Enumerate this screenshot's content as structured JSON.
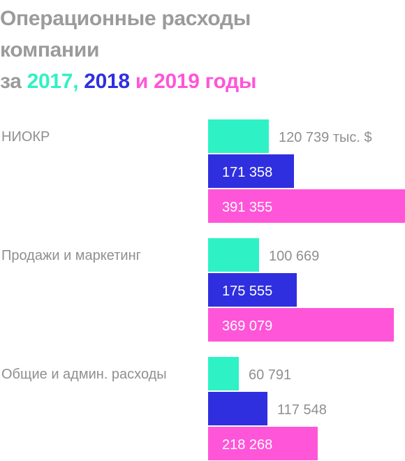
{
  "title": {
    "line1": "Операционные расходы",
    "line2": "компании",
    "prefix": "за",
    "year1": "2017,",
    "year2": "2018",
    "conj": "и",
    "year3": "2019",
    "suffix": "годы"
  },
  "colors": {
    "title_gray": "#9b9b9b",
    "y2017": "#2ef2c5",
    "y2018": "#2f2fe0",
    "y2019": "#ff55d8",
    "label_gray": "#8f8f8f"
  },
  "chart_data": {
    "type": "bar",
    "orientation": "horizontal",
    "categories": [
      "НИОКР",
      "Продажи и маркетинг",
      "Общие и админ. расходы"
    ],
    "series": [
      {
        "values": [
          120739,
          100669,
          60791
        ],
        "labels": [
          "120 739 тыс. $",
          "100 669",
          "60 791"
        ]
      },
      {
        "values": [
          171358,
          175555,
          117548
        ],
        "labels": [
          "171 358",
          "175 555",
          "117 548"
        ]
      },
      {
        "values": [
          391355,
          369079,
          218268
        ],
        "labels": [
          "391 355",
          "369 079",
          "218 268"
        ]
      }
    ],
    "unit": "тыс. $",
    "xlim": [
      0,
      391355
    ],
    "grid": false,
    "legend": "none"
  }
}
